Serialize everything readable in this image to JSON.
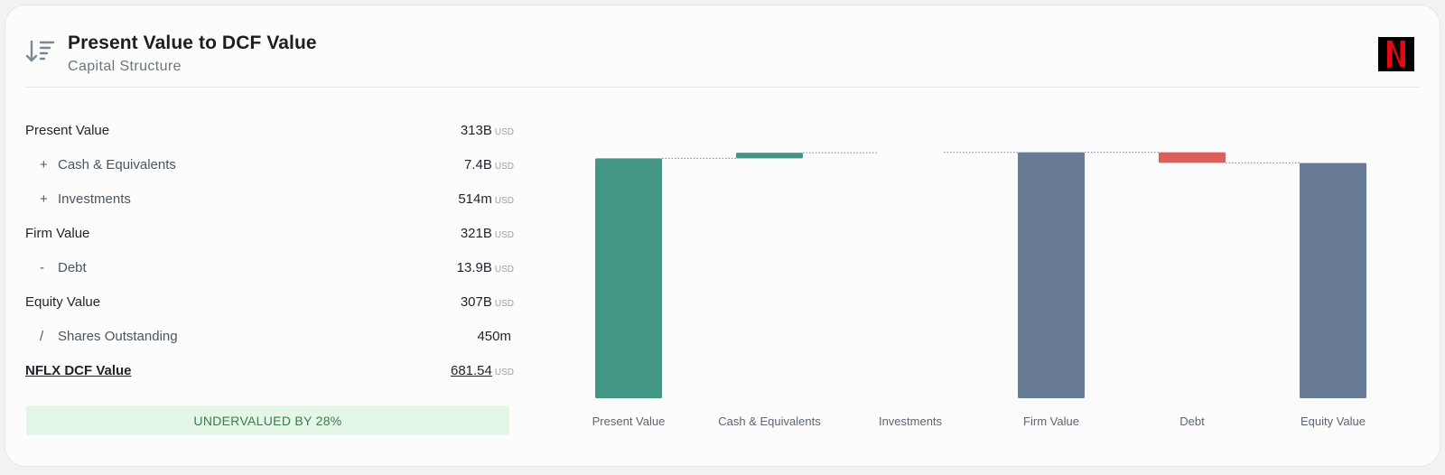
{
  "header": {
    "title": "Present Value to DCF Value",
    "subtitle": "Capital Structure",
    "icon": "sort-descending-icon",
    "logo_letter": "N",
    "logo_icon": "netflix-logo"
  },
  "table": {
    "rows": [
      {
        "op": "",
        "label": "Present Value",
        "value": "313B",
        "unit": "USD"
      },
      {
        "op": "+",
        "label": "Cash & Equivalents",
        "value": "7.4B",
        "unit": "USD"
      },
      {
        "op": "+",
        "label": "Investments",
        "value": "514m",
        "unit": "USD"
      },
      {
        "op": "",
        "label": "Firm Value",
        "value": "321B",
        "unit": "USD"
      },
      {
        "op": "-",
        "label": "Debt",
        "value": "13.9B",
        "unit": "USD"
      },
      {
        "op": "",
        "label": "Equity Value",
        "value": "307B",
        "unit": "USD"
      },
      {
        "op": "/",
        "label": "Shares Outstanding",
        "value": "450m",
        "unit": ""
      },
      {
        "op": "",
        "label": "NFLX DCF Value",
        "value": "681.54",
        "unit": "USD"
      }
    ]
  },
  "badge": {
    "text": "UNDERVALUED BY 28%"
  },
  "colors": {
    "positive": "#449684",
    "negative": "#dc5f59",
    "total": "#677c94"
  },
  "chart_data": {
    "type": "bar",
    "subtype": "waterfall",
    "categories": [
      "Present Value",
      "Cash & Equivalents",
      "Investments",
      "Firm Value",
      "Debt",
      "Equity Value"
    ],
    "values": [
      313,
      7.4,
      0.514,
      321,
      -13.9,
      307
    ],
    "kinds": [
      "positive",
      "positive",
      "positive",
      "total",
      "negative",
      "total"
    ],
    "unit": "B USD",
    "ylim": [
      0,
      330
    ],
    "grid": false,
    "legend": "none"
  }
}
